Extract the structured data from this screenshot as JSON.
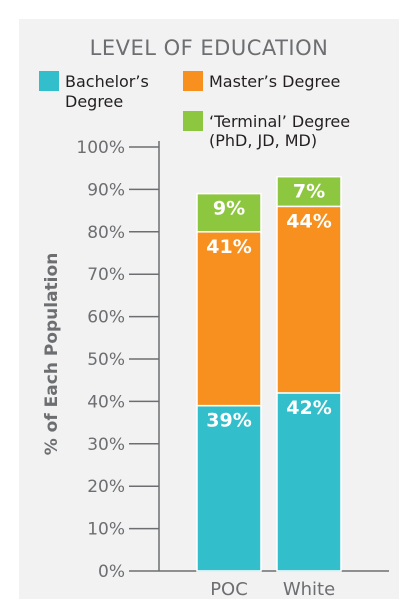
{
  "colors": {
    "bachelor": "#32bfcb",
    "master": "#f7901e",
    "terminal": "#8dc63f",
    "axis": "#6d6e71",
    "panel": "#f2f2f2"
  },
  "legend": {
    "bachelor_line1": "Bachelor’s",
    "bachelor_line2": "Degree",
    "master": "Master’s Degree",
    "terminal_line1": "‘Terminal’ Degree",
    "terminal_line2": "(PhD, JD, MD)"
  },
  "chart_data": {
    "type": "bar",
    "stacked": true,
    "title": "LEVEL OF EDUCATION",
    "ylabel": "% of Each Population",
    "xlabel": "",
    "ylim": [
      0,
      100
    ],
    "yticks": [
      "0%",
      "10%",
      "20%",
      "30%",
      "40%",
      "50%",
      "60%",
      "70%",
      "80%",
      "90%",
      "100%"
    ],
    "categories": [
      "POC",
      "White"
    ],
    "series": [
      {
        "name": "Bachelor’s Degree",
        "values": [
          39,
          42
        ],
        "labels": [
          "39%",
          "42%"
        ]
      },
      {
        "name": "Master’s Degree",
        "values": [
          41,
          44
        ],
        "labels": [
          "41%",
          "44%"
        ]
      },
      {
        "name": "‘Terminal’ Degree (PhD, JD, MD)",
        "values": [
          9,
          7
        ],
        "labels": [
          "9%",
          "7%"
        ]
      }
    ],
    "legend_position": "top",
    "grid": false
  }
}
